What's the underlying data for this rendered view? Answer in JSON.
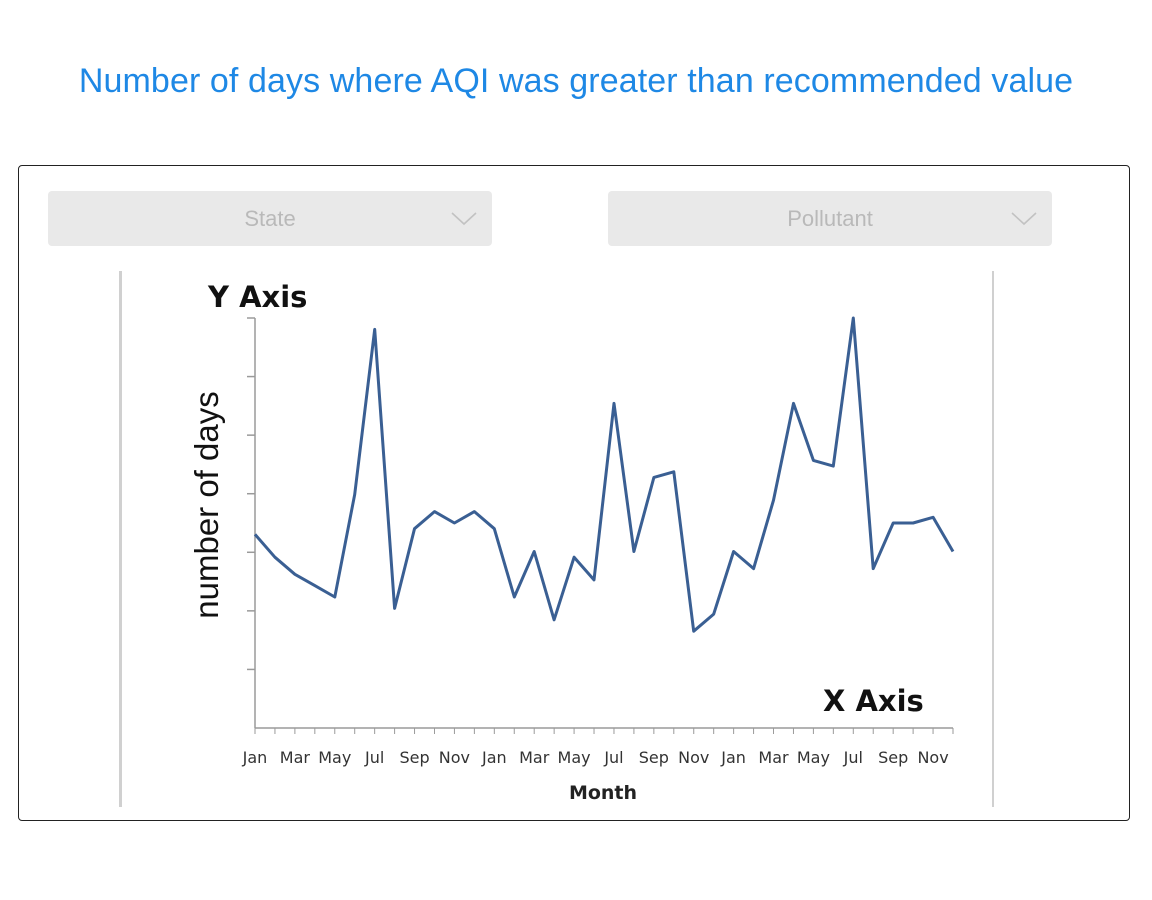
{
  "header": {
    "title": "Number of days where AQI was greater than recommended value"
  },
  "filters": {
    "state": {
      "placeholder": "State",
      "icon": "chevron-down-icon"
    },
    "pollutant": {
      "placeholder": "Pollutant",
      "icon": "chevron-down-icon"
    }
  },
  "chart_data": {
    "type": "line",
    "y_axis_title": "Y Axis",
    "x_axis_title": "X Axis",
    "ylabel": "number of days",
    "xlabel": "Month",
    "tick_labels": [
      "Jan",
      "Mar",
      "May",
      "Jul",
      "Sep",
      "Nov",
      "Jan",
      "Mar",
      "May",
      "Jul",
      "Sep",
      "Nov",
      "Jan",
      "Mar",
      "May",
      "Jul",
      "Sep",
      "Nov"
    ],
    "ylim": [
      0,
      72
    ],
    "grid": false,
    "line_color": "#3a5f93",
    "series": [
      {
        "values": [
          34,
          30,
          27,
          25,
          23,
          41,
          70,
          21,
          35,
          38,
          36,
          38,
          35,
          23,
          31,
          19,
          30,
          26,
          57,
          31,
          44,
          45,
          17,
          20,
          31,
          28,
          40,
          57,
          47,
          46,
          72,
          28,
          36,
          36,
          37,
          31
        ]
      }
    ]
  }
}
